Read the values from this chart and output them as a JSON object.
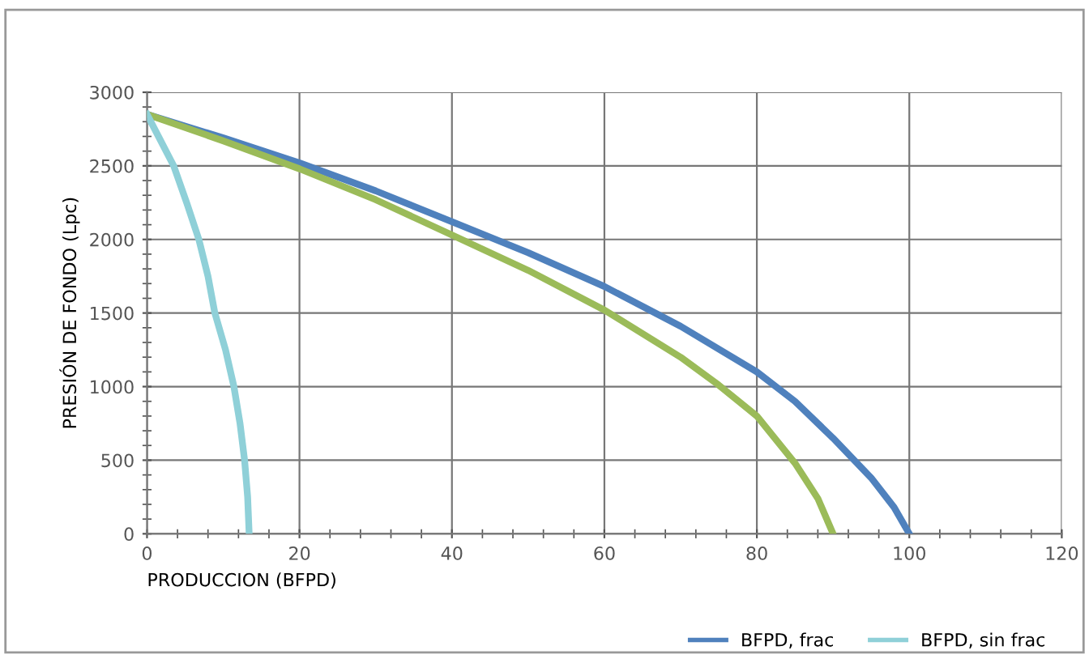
{
  "chart_data": {
    "type": "line",
    "xlabel": "PRODUCCION (BFPD)",
    "ylabel": "PRESIÓN DE FONDO (Lpc)",
    "xlim": [
      0,
      120
    ],
    "ylim": [
      0,
      3000
    ],
    "xticks": [
      0,
      20,
      40,
      60,
      80,
      100,
      120
    ],
    "yticks": [
      0,
      500,
      1000,
      1500,
      2000,
      2500,
      3000
    ],
    "grid": true,
    "legend": "bottom",
    "marker": "none",
    "line_style": "solid",
    "series": [
      {
        "name": "BFPD, frac",
        "color": "#4f81bd",
        "x": [
          0,
          10,
          20,
          30,
          40,
          50,
          60,
          70,
          80,
          85,
          90,
          95,
          98,
          100
        ],
        "values": [
          2850,
          2690,
          2520,
          2330,
          2120,
          1910,
          1680,
          1410,
          1100,
          900,
          650,
          380,
          180,
          0
        ]
      },
      {
        "color": "#9bbb59",
        "x": [
          0,
          10,
          20,
          30,
          40,
          50,
          60,
          70,
          75,
          80,
          85,
          88,
          90
        ],
        "values": [
          2850,
          2670,
          2480,
          2270,
          2030,
          1790,
          1520,
          1200,
          1010,
          800,
          480,
          240,
          0
        ]
      },
      {
        "name": "BFPD, sin frac",
        "color": "#8fd0d8",
        "x": [
          0,
          1.5,
          3.5,
          5.2,
          6.8,
          8,
          8.9,
          10.3,
          11.4,
          12.2,
          12.8,
          13.2,
          13.4
        ],
        "values": [
          2850,
          2700,
          2500,
          2250,
          2000,
          1750,
          1500,
          1250,
          1000,
          750,
          500,
          250,
          0
        ]
      }
    ]
  }
}
